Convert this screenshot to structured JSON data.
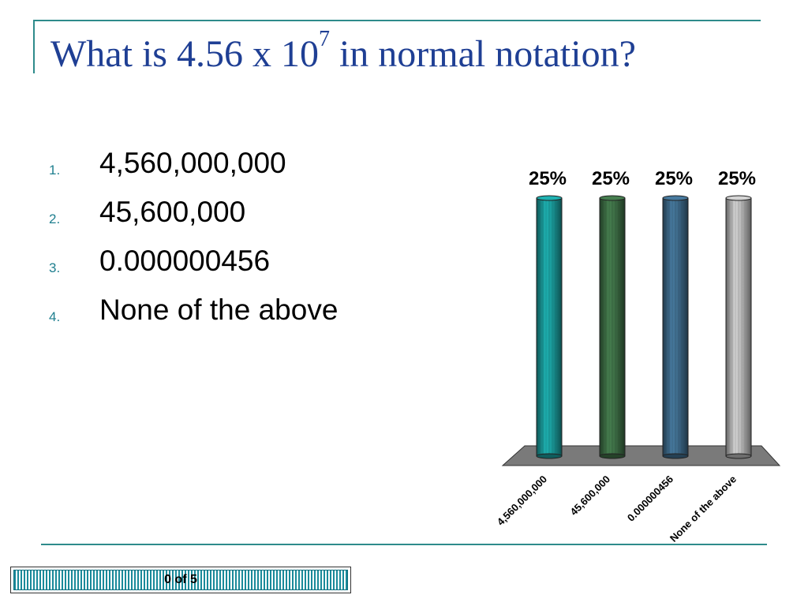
{
  "slide": {
    "title_main": "What is 4.56 x 10",
    "title_sup": "7",
    "title_rest": " in normal notation?"
  },
  "options": [
    {
      "num": "1.",
      "text": "4,560,000,000"
    },
    {
      "num": "2.",
      "text": "45,600,000"
    },
    {
      "num": "3.",
      "text": "0.000000456"
    },
    {
      "num": "4.",
      "text": "None of the above"
    }
  ],
  "counter": {
    "text": "0 of 5",
    "progress": 0
  },
  "colors": {
    "title": "#1f3f94",
    "rule": "#2e8b8b",
    "bars": [
      "#1a9a9a",
      "#3d6e45",
      "#3e6a8a",
      "#b8b8b8"
    ]
  },
  "chart_data": {
    "type": "bar",
    "categories": [
      "4,560,000,000",
      "45,600,000",
      "0.000000456",
      "None of the above"
    ],
    "values": [
      25,
      25,
      25,
      25
    ],
    "value_labels": [
      "25%",
      "25%",
      "25%",
      "25%"
    ],
    "unit": "%",
    "ylim": [
      0,
      25
    ],
    "grid": false,
    "style": "3d-cylinders"
  }
}
